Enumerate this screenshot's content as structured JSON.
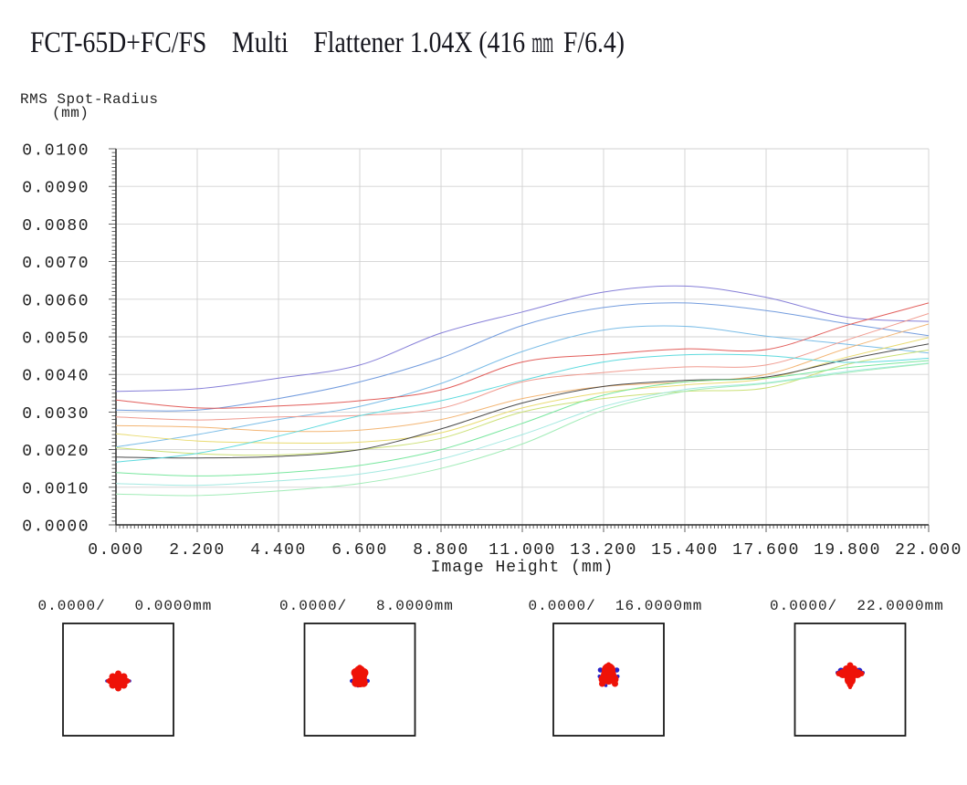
{
  "title": {
    "pre_mm": "FCT-65D+FC/FS    Multi    Flattener 1.04X (416 ",
    "mm": "mm",
    "post_mm": " F/6.4)"
  },
  "chart_data": {
    "type": "line",
    "ylabel_line1": "RMS Spot-Radius",
    "ylabel_line2": "(mm)",
    "xlabel": "Image Height (mm)",
    "xlim": [
      0,
      22
    ],
    "ylim": [
      0,
      0.01
    ],
    "grid": true,
    "x_tick_labels": [
      "0.000",
      "2.200",
      "4.400",
      "6.600",
      "8.800",
      "11.000",
      "13.200",
      "15.400",
      "17.600",
      "19.800",
      "22.000"
    ],
    "y_tick_labels": [
      "0.0000",
      "0.0010",
      "0.0020",
      "0.0030",
      "0.0040",
      "0.0050",
      "0.0060",
      "0.0070",
      "0.0080",
      "0.0090",
      "0.0100"
    ],
    "x": [
      0,
      2.2,
      4.4,
      6.6,
      8.8,
      11,
      13.2,
      15.4,
      17.6,
      19.8,
      22
    ],
    "series": [
      {
        "name": "violet",
        "color": "#8078d6",
        "values": [
          0.00355,
          0.00362,
          0.0039,
          0.00425,
          0.0051,
          0.00566,
          0.00619,
          0.00635,
          0.00605,
          0.00552,
          0.00541
        ]
      },
      {
        "name": "blue",
        "color": "#6b97dc",
        "values": [
          0.00305,
          0.00305,
          0.00336,
          0.0038,
          0.00444,
          0.0053,
          0.00578,
          0.0059,
          0.0057,
          0.00535,
          0.00503
        ]
      },
      {
        "name": "sky-blue",
        "color": "#74b9e6",
        "values": [
          0.00207,
          0.0024,
          0.0028,
          0.00315,
          0.00376,
          0.00461,
          0.00518,
          0.00528,
          0.00502,
          0.0048,
          0.00457
        ]
      },
      {
        "name": "red",
        "color": "#e05552",
        "values": [
          0.00332,
          0.00311,
          0.00316,
          0.0033,
          0.00359,
          0.00433,
          0.00453,
          0.00468,
          0.00466,
          0.00531,
          0.0059
        ]
      },
      {
        "name": "salmon",
        "color": "#ef968a",
        "values": [
          0.00287,
          0.00279,
          0.00287,
          0.00291,
          0.0031,
          0.0038,
          0.00405,
          0.0042,
          0.00425,
          0.00492,
          0.00562
        ]
      },
      {
        "name": "orange",
        "color": "#f2b26e",
        "values": [
          0.00264,
          0.0026,
          0.00249,
          0.00252,
          0.0028,
          0.00336,
          0.00368,
          0.0038,
          0.004,
          0.0047,
          0.00534
        ]
      },
      {
        "name": "yellow",
        "color": "#e8d968",
        "values": [
          0.00242,
          0.00223,
          0.00218,
          0.0022,
          0.00245,
          0.00311,
          0.00352,
          0.00372,
          0.00389,
          0.00446,
          0.00498
        ]
      },
      {
        "name": "yellow-green",
        "color": "#c8de6e",
        "values": [
          0.00205,
          0.00189,
          0.00186,
          0.002,
          0.0023,
          0.003,
          0.00336,
          0.00355,
          0.00364,
          0.00427,
          0.00465
        ]
      },
      {
        "name": "black",
        "color": "#404040",
        "values": [
          0.0018,
          0.00178,
          0.00182,
          0.002,
          0.00255,
          0.00324,
          0.00368,
          0.00384,
          0.00393,
          0.0044,
          0.00481
        ]
      },
      {
        "name": "cyan",
        "color": "#55d8dc",
        "values": [
          0.00167,
          0.0019,
          0.00236,
          0.0029,
          0.0033,
          0.00384,
          0.00433,
          0.00452,
          0.0045,
          0.00432,
          0.00443
        ]
      },
      {
        "name": "green",
        "color": "#72e69a",
        "values": [
          0.00139,
          0.0013,
          0.00138,
          0.00158,
          0.002,
          0.0027,
          0.00345,
          0.0038,
          0.0039,
          0.00418,
          0.00437
        ]
      },
      {
        "name": "pale-cyan",
        "color": "#9fe8df",
        "values": [
          0.0011,
          0.00105,
          0.00117,
          0.00135,
          0.00175,
          0.0024,
          0.00315,
          0.0036,
          0.00378,
          0.00408,
          0.0043
        ]
      },
      {
        "name": "pale-green",
        "color": "#9debb4",
        "values": [
          0.00082,
          0.00078,
          0.0009,
          0.0011,
          0.0015,
          0.00215,
          0.00305,
          0.00355,
          0.00376,
          0.00405,
          0.00429
        ]
      }
    ]
  },
  "spots": [
    {
      "label": "0.0000/   0.0000mm",
      "shape": "round"
    },
    {
      "label": "0.0000/   8.0000mm",
      "shape": "dome"
    },
    {
      "label": "0.0000/  16.0000mm",
      "shape": "bell"
    },
    {
      "label": "0.0000/  22.0000mm",
      "shape": "cross"
    }
  ],
  "colors": {
    "grid": "#d2d2d2",
    "axis": "#2a2a2a",
    "spot_red": "#ee1208",
    "spot_blue": "#2823c8",
    "box_border": "#1a1a1a"
  }
}
